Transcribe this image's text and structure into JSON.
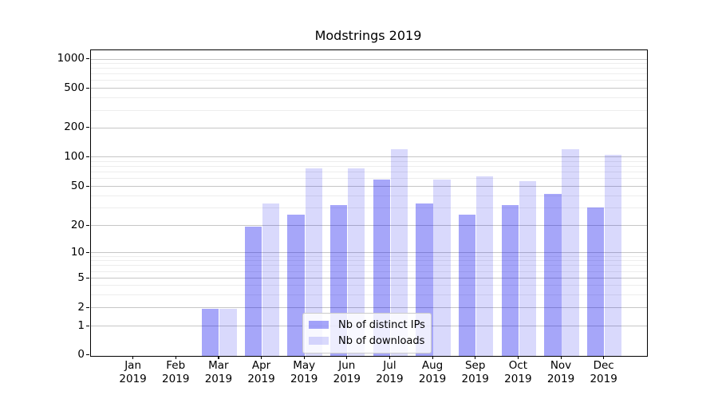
{
  "chart_data": {
    "type": "bar",
    "title": "Modstrings 2019",
    "categories": [
      "Jan 2019",
      "Feb 2019",
      "Mar 2019",
      "Apr 2019",
      "May 2019",
      "Jun 2019",
      "Jul 2019",
      "Aug 2019",
      "Sep 2019",
      "Oct 2019",
      "Nov 2019",
      "Dec 2019"
    ],
    "series": [
      {
        "name": "Nb of distinct IPs",
        "color_hex": "#0000ee",
        "alpha": 0.35,
        "values": [
          0,
          0,
          2,
          20,
          26,
          33,
          60,
          34,
          26,
          33,
          43,
          31
        ]
      },
      {
        "name": "Nb of downloads",
        "color_hex": "#0000ee",
        "alpha": 0.15,
        "values": [
          0,
          0,
          2,
          34,
          78,
          78,
          123,
          60,
          64,
          58,
          123,
          106
        ]
      }
    ],
    "xlabel": "",
    "ylabel": "",
    "yscale": "symlog",
    "yticks": [
      0,
      1,
      2,
      5,
      10,
      20,
      50,
      100,
      200,
      500,
      1000
    ],
    "ylim": [
      0,
      1200
    ],
    "grid": true,
    "legend_position": "lower center",
    "background_color": "#ffffff",
    "major_grid_color": "#c6c6c6",
    "minor_grid_color": "#ededed"
  }
}
